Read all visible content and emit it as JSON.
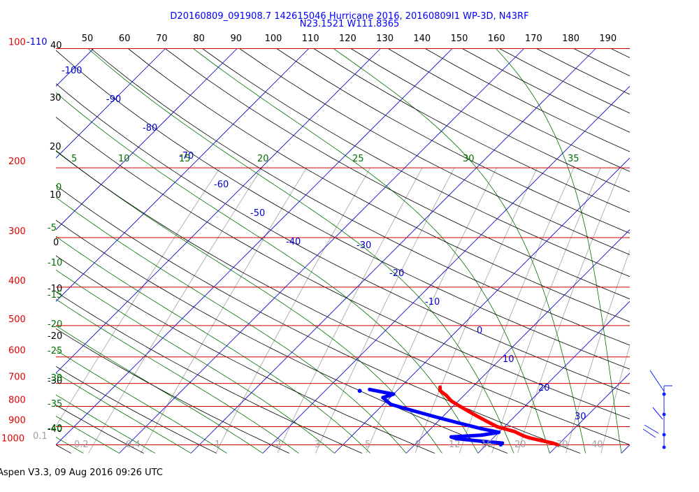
{
  "title": {
    "line1": "D20160809_091908.7 142615046 Hurricane 2016, 20160809I1 WP-3D, N43RF",
    "line2": "N23.1521 W111.8365"
  },
  "footer": "Aspen V3.3, 09 Aug 2016  09:26 UTC",
  "colors": {
    "isobar": "#d40000",
    "pressure_label": "#e00000",
    "isotherm": "#0000cc",
    "dry_adiabat": "#000000",
    "moist_adiabat": "#007000",
    "mixing_ratio": "#a0a0a0",
    "temperature": "#ff0000",
    "dewpoint": "#0000ff"
  },
  "chart_data": {
    "type": "skew-t log-p diagram",
    "pressure_labels": [
      "100",
      "200",
      "300",
      "400",
      "500",
      "600",
      "700",
      "800",
      "900",
      "1000"
    ],
    "top_axis_ticks": [
      "50",
      "60",
      "70",
      "80",
      "90",
      "100",
      "110",
      "120",
      "130",
      "140",
      "150",
      "160",
      "170",
      "180",
      "190"
    ],
    "left_dry_adiabat_ticks": [
      "40",
      "30",
      "20",
      "10",
      "0",
      "-10",
      "-20",
      "-30",
      "-40"
    ],
    "isotherm_labels": [
      "-110",
      "-100",
      "-90",
      "-80",
      "-70",
      "-60",
      "-50",
      "-40",
      "-30",
      "-20",
      "-10",
      "0",
      "10",
      "20",
      "30"
    ],
    "moist_adiabat_top_labels": [
      "5",
      "10",
      "15",
      "20",
      "25",
      "30",
      "35"
    ],
    "moist_adiabat_left_labels": [
      "0",
      "-5",
      "-10",
      "-15",
      "-20",
      "-25",
      "-30",
      "-35",
      "-40"
    ],
    "mixing_ratio_labels": [
      "0.1",
      "0.2",
      "0.4",
      "1",
      "2",
      "3",
      "5",
      "8",
      "12",
      "16",
      "20",
      "30",
      "40"
    ],
    "temperature": [
      {
        "p": 1000,
        "t": 30
      },
      {
        "p": 990,
        "t": 29
      },
      {
        "p": 975,
        "t": 27
      },
      {
        "p": 960,
        "t": 25
      },
      {
        "p": 950,
        "t": 24
      },
      {
        "p": 925,
        "t": 22
      },
      {
        "p": 900,
        "t": 19
      },
      {
        "p": 875,
        "t": 17
      },
      {
        "p": 850,
        "t": 15
      },
      {
        "p": 825,
        "t": 13
      },
      {
        "p": 800,
        "t": 11
      },
      {
        "p": 775,
        "t": 9
      },
      {
        "p": 750,
        "t": 7.5
      },
      {
        "p": 730,
        "t": 6
      },
      {
        "p": 715,
        "t": 5.5
      }
    ],
    "dewpoint": [
      {
        "p": 1000,
        "t": 22
      },
      {
        "p": 990,
        "t": 22
      },
      {
        "p": 980,
        "t": 19
      },
      {
        "p": 965,
        "t": 15
      },
      {
        "p": 955,
        "t": 14
      },
      {
        "p": 945,
        "t": 18
      },
      {
        "p": 930,
        "t": 20
      },
      {
        "p": 910,
        "t": 17
      },
      {
        "p": 880,
        "t": 13
      },
      {
        "p": 850,
        "t": 9
      },
      {
        "p": 820,
        "t": 5
      },
      {
        "p": 790,
        "t": 1
      },
      {
        "p": 760,
        "t": -1
      },
      {
        "p": 745,
        "t": 0
      },
      {
        "p": 725,
        "t": -4
      }
    ],
    "ylim": [
      100,
      1050
    ],
    "xlim_temperature_at_1000hPa": [
      -40,
      40
    ]
  }
}
